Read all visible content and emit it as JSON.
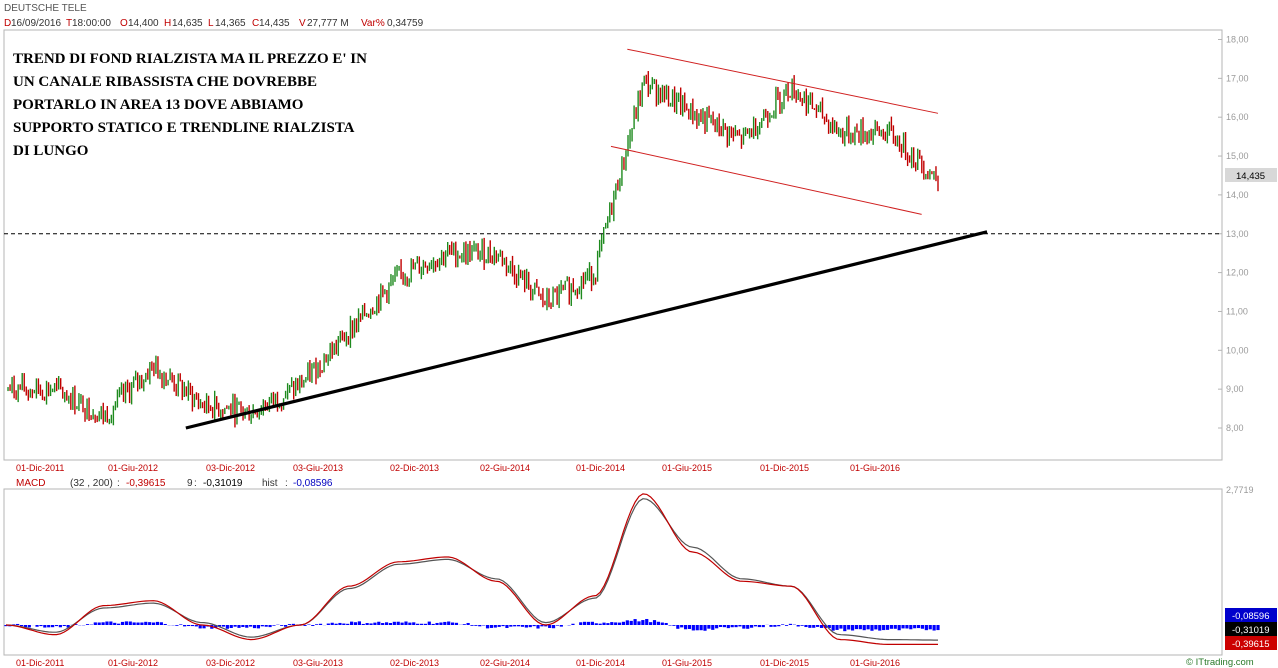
{
  "header": {
    "title": "DEUTSCHE TELE",
    "date_prefix": "D",
    "date": "16/09/2016",
    "time_prefix": "T",
    "time": "18:00:00",
    "open_prefix": "O",
    "open": "14,400",
    "high_prefix": "H",
    "high": "14,635",
    "low_prefix": "L",
    "low": "14,365",
    "close_prefix": "C",
    "close": "14,435",
    "volume_prefix": "V",
    "volume": "27,777 M",
    "varpct_prefix": "Var%",
    "varpct": "0,34759"
  },
  "annotation": [
    "TREND DI FOND RIALZISTA MA IL PREZZO E' IN",
    "UN CANALE RIBASSISTA CHE DOVREBBE",
    "PORTARLO IN AREA 13 DOVE ABBIAMO",
    "SUPPORTO STATICO E TRENDLINE RIALZISTA",
    "DI LUNGO"
  ],
  "macd_header": {
    "name": "MACD",
    "params": "(32 , 200)",
    "sep": ":",
    "macd": "-0,39615",
    "signal_label": "9",
    "signal": "-0,31019",
    "hist_label": "hist",
    "hist": "-0,08596"
  },
  "price_box": "14,435",
  "macd_boxes": {
    "hist": "-0,08596",
    "signal": "-0,31019",
    "macd": "-0,39615"
  },
  "macd_top_label": "2,7719",
  "watermark": "© ITtrading.com",
  "colors": {
    "price_up": "#1e8a1e",
    "price_down": "#c00000",
    "channel": "#d02020",
    "trendline": "#000000",
    "hist": "#0000ff",
    "macd_line": "#c00000",
    "signal_line": "#555555"
  },
  "chart_data": [
    {
      "type": "line",
      "title": "DEUTSCHE TELE",
      "xlabel": "",
      "ylabel": "",
      "ylim": [
        7.5,
        18.2
      ],
      "yticks": [
        "18,00",
        "17,00",
        "16,00",
        "15,00",
        "14,00",
        "13,00",
        "12,00",
        "11,00",
        "10,00",
        "9,00",
        "8,00"
      ],
      "xticks": [
        "01-Dic-2011",
        "01-Giu-2012",
        "03-Dic-2012",
        "03-Giu-2013",
        "02-Dic-2013",
        "02-Giu-2014",
        "01-Dic-2014",
        "01-Giu-2015",
        "01-Dic-2015",
        "01-Giu-2016"
      ],
      "x": [
        "2011-12",
        "2012-03",
        "2012-06",
        "2012-09",
        "2012-12",
        "2013-03",
        "2013-06",
        "2013-09",
        "2013-12",
        "2014-03",
        "2014-06",
        "2014-09",
        "2014-12",
        "2015-03",
        "2015-06",
        "2015-09",
        "2015-12",
        "2016-03",
        "2016-06",
        "2016-09"
      ],
      "series": [
        {
          "values": [
            9.0,
            9.0,
            8.3,
            9.6,
            8.6,
            8.4,
            9.1,
            10.5,
            11.9,
            12.5,
            12.5,
            11.2,
            12.0,
            16.9,
            16.1,
            15.4,
            16.8,
            15.6,
            15.6,
            14.4
          ]
        }
      ],
      "lines": [
        {
          "kind": "support",
          "value": 13.0
        },
        {
          "kind": "trendline",
          "from": [
            "2012-11",
            8.0
          ],
          "to": [
            "2016-12",
            13.05
          ]
        },
        {
          "kind": "channel-upper",
          "from": [
            "2015-02",
            17.75
          ],
          "to": [
            "2016-09",
            16.1
          ]
        },
        {
          "kind": "channel-lower",
          "from": [
            "2015-01",
            15.25
          ],
          "to": [
            "2016-08",
            13.5
          ]
        }
      ],
      "grid": false
    },
    {
      "type": "line",
      "title": "MACD",
      "ylim": [
        -0.8,
        2.7719
      ],
      "x": [
        "2011-12",
        "2012-03",
        "2012-06",
        "2012-09",
        "2012-12",
        "2013-03",
        "2013-06",
        "2013-09",
        "2013-12",
        "2014-03",
        "2014-06",
        "2014-09",
        "2014-12",
        "2015-03",
        "2015-06",
        "2015-09",
        "2015-12",
        "2016-03",
        "2016-06",
        "2016-09"
      ],
      "series": [
        {
          "name": "MACD",
          "values": [
            0.0,
            -0.2,
            0.4,
            0.5,
            0.0,
            -0.3,
            0.0,
            0.8,
            1.3,
            1.4,
            0.9,
            0.0,
            0.6,
            2.7,
            1.5,
            0.9,
            0.8,
            -0.3,
            -0.4,
            -0.4
          ]
        },
        {
          "name": "9",
          "values": [
            0.0,
            -0.15,
            0.35,
            0.45,
            0.05,
            -0.25,
            0.0,
            0.75,
            1.25,
            1.35,
            0.95,
            0.05,
            0.55,
            2.6,
            1.6,
            0.95,
            0.8,
            -0.2,
            -0.3,
            -0.31
          ]
        },
        {
          "name": "hist",
          "values": [
            0.0,
            -0.05,
            0.05,
            0.05,
            -0.05,
            -0.05,
            0.0,
            0.05,
            0.05,
            0.05,
            -0.05,
            -0.05,
            0.05,
            0.1,
            -0.1,
            -0.05,
            0.0,
            -0.1,
            -0.1,
            -0.086
          ]
        }
      ]
    }
  ]
}
